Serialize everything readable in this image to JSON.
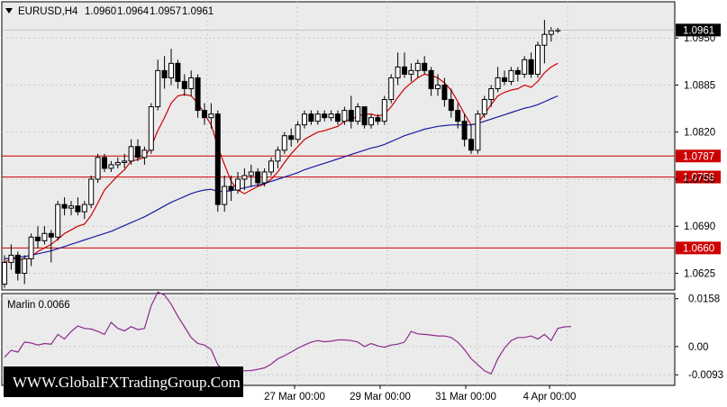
{
  "symbol": "EURUSD,H4",
  "ohlc": [
    "1.0960",
    "1.0964",
    "1.0957",
    "1.0961"
  ],
  "colors": {
    "price_bg": "#ebebeb",
    "grid": "#c8c8c8",
    "candle": "#000000",
    "ma_fast": "#cc0000",
    "ma_slow": "#1a1aa0",
    "hline": "#cc0000",
    "oscillator": "#8c2a8c",
    "price_tag": "#000000"
  },
  "current_price": "1.0961",
  "watermark": "WWW.GlobalFXTradingGroup.Com",
  "chart_data": [
    {
      "type": "candlestick",
      "title": "EURUSD,H4",
      "y_ticks": [
        "1.0950",
        "1.0885",
        "1.0820",
        "1.0755",
        "1.0690",
        "1.0625"
      ],
      "ylim": [
        1.0602,
        1.1
      ],
      "x_ticks": [
        "27 Mar 00:00",
        "29 Mar 00:00",
        "31 Mar 00:00",
        "4 Apr 00:00"
      ],
      "horizontal_levels": [
        {
          "value": 1.0787,
          "label": "1.0787"
        },
        {
          "value": 1.0758,
          "label": "1.0758"
        },
        {
          "value": 1.066,
          "label": "1.0660"
        }
      ],
      "candles": [
        [
          1.061,
          1.065,
          1.0605,
          1.064
        ],
        [
          1.064,
          1.0665,
          1.063,
          1.065
        ],
        [
          1.065,
          1.0655,
          1.0615,
          1.0625
        ],
        [
          1.0625,
          1.065,
          1.061,
          1.0645
        ],
        [
          1.0645,
          1.068,
          1.0635,
          1.0675
        ],
        [
          1.0675,
          1.069,
          1.066,
          1.067
        ],
        [
          1.067,
          1.069,
          1.0665,
          1.068
        ],
        [
          1.068,
          1.0685,
          1.064,
          1.0675
        ],
        [
          1.0675,
          1.0725,
          1.067,
          1.072
        ],
        [
          1.072,
          1.073,
          1.0705,
          1.0715
        ],
        [
          1.0715,
          1.0725,
          1.0705,
          1.0718
        ],
        [
          1.0718,
          1.073,
          1.0705,
          1.071
        ],
        [
          1.071,
          1.0725,
          1.07,
          1.072
        ],
        [
          1.072,
          1.076,
          1.0715,
          1.0755
        ],
        [
          1.0755,
          1.079,
          1.075,
          1.0785
        ],
        [
          1.0785,
          1.079,
          1.0765,
          1.077
        ],
        [
          1.077,
          1.078,
          1.0765,
          1.0775
        ],
        [
          1.0775,
          1.0785,
          1.077,
          1.0778
        ],
        [
          1.0778,
          1.079,
          1.077,
          1.078
        ],
        [
          1.078,
          1.081,
          1.0775,
          1.08
        ],
        [
          1.08,
          1.081,
          1.078,
          1.0785
        ],
        [
          1.0785,
          1.08,
          1.0775,
          1.0795
        ],
        [
          1.0795,
          1.086,
          1.079,
          1.0855
        ],
        [
          1.0855,
          1.092,
          1.085,
          1.0905
        ],
        [
          1.0905,
          1.0925,
          1.088,
          1.0895
        ],
        [
          1.0895,
          1.0935,
          1.0885,
          1.0915
        ],
        [
          1.0915,
          1.092,
          1.088,
          1.089
        ],
        [
          1.089,
          1.09,
          1.087,
          1.088
        ],
        [
          1.088,
          1.0905,
          1.087,
          1.0895
        ],
        [
          1.0895,
          1.09,
          1.084,
          1.085
        ],
        [
          1.085,
          1.086,
          1.083,
          1.084
        ],
        [
          1.084,
          1.086,
          1.0825,
          1.0845
        ],
        [
          1.0845,
          1.085,
          1.071,
          1.072
        ],
        [
          1.072,
          1.076,
          1.071,
          1.0745
        ],
        [
          1.0745,
          1.076,
          1.0725,
          1.074
        ],
        [
          1.074,
          1.0765,
          1.0735,
          1.0755
        ],
        [
          1.0755,
          1.077,
          1.074,
          1.076
        ],
        [
          1.076,
          1.0775,
          1.0745,
          1.0765
        ],
        [
          1.0765,
          1.077,
          1.0745,
          1.075
        ],
        [
          1.075,
          1.077,
          1.0745,
          1.0765
        ],
        [
          1.0765,
          1.0785,
          1.076,
          1.078
        ],
        [
          1.078,
          1.08,
          1.077,
          1.0795
        ],
        [
          1.0795,
          1.082,
          1.079,
          1.0815
        ],
        [
          1.0815,
          1.0825,
          1.08,
          1.081
        ],
        [
          1.081,
          1.0835,
          1.0805,
          1.083
        ],
        [
          1.083,
          1.085,
          1.0825,
          1.0845
        ],
        [
          1.0845,
          1.085,
          1.083,
          1.0835
        ],
        [
          1.0835,
          1.085,
          1.083,
          1.0845
        ],
        [
          1.0845,
          1.085,
          1.0835,
          1.084
        ],
        [
          1.084,
          1.085,
          1.0835,
          1.0845
        ],
        [
          1.0845,
          1.085,
          1.083,
          1.0835
        ],
        [
          1.0835,
          1.0855,
          1.083,
          1.085
        ],
        [
          1.085,
          1.087,
          1.0825,
          1.0835
        ],
        [
          1.0835,
          1.086,
          1.083,
          1.0855
        ],
        [
          1.0855,
          1.0855,
          1.0825,
          1.083
        ],
        [
          1.083,
          1.0845,
          1.0825,
          1.084
        ],
        [
          1.084,
          1.0845,
          1.083,
          1.0835
        ],
        [
          1.0835,
          1.087,
          1.083,
          1.0865
        ],
        [
          1.0865,
          1.09,
          1.086,
          1.0895
        ],
        [
          1.0895,
          1.093,
          1.0885,
          1.091
        ],
        [
          1.091,
          1.093,
          1.0895,
          1.09
        ],
        [
          1.09,
          1.0915,
          1.089,
          1.0905
        ],
        [
          1.0905,
          1.092,
          1.0895,
          1.0915
        ],
        [
          1.0915,
          1.0925,
          1.09,
          1.0905
        ],
        [
          1.0905,
          1.091,
          1.087,
          1.088
        ],
        [
          1.088,
          1.09,
          1.087,
          1.0885
        ],
        [
          1.0885,
          1.0895,
          1.0855,
          1.0865
        ],
        [
          1.0865,
          1.088,
          1.084,
          1.085
        ],
        [
          1.085,
          1.086,
          1.0825,
          1.0835
        ],
        [
          1.0835,
          1.0845,
          1.08,
          1.081
        ],
        [
          1.081,
          1.083,
          1.079,
          1.0795
        ],
        [
          1.0795,
          1.085,
          1.079,
          1.0845
        ],
        [
          1.0845,
          1.087,
          1.084,
          1.0865
        ],
        [
          1.0865,
          1.0885,
          1.0855,
          1.088
        ],
        [
          1.088,
          1.091,
          1.0875,
          1.0895
        ],
        [
          1.0895,
          1.0905,
          1.0885,
          1.089
        ],
        [
          1.089,
          1.091,
          1.0885,
          1.0905
        ],
        [
          1.0905,
          1.091,
          1.089,
          1.09
        ],
        [
          1.09,
          1.0925,
          1.0895,
          1.092
        ],
        [
          1.092,
          1.093,
          1.0895,
          1.09
        ],
        [
          1.09,
          1.0945,
          1.0895,
          1.094
        ],
        [
          1.094,
          1.0975,
          1.0915,
          1.0955
        ],
        [
          1.0955,
          1.0965,
          1.0945,
          1.096
        ],
        [
          1.096,
          1.0964,
          1.0957,
          1.0961
        ]
      ],
      "series": [
        {
          "type": "line",
          "values": [
            1.064,
            1.0645,
            1.0645,
            1.0643,
            1.0648,
            1.0655,
            1.066,
            1.0665,
            1.0672,
            1.068,
            1.0685,
            1.069,
            1.0693,
            1.0705,
            1.0722,
            1.074,
            1.075,
            1.076,
            1.0768,
            1.078,
            1.0782,
            1.0785,
            1.08,
            1.0822,
            1.084,
            1.086,
            1.087,
            1.0872,
            1.087,
            1.086,
            1.0845,
            1.083,
            1.08,
            1.0775,
            1.0752,
            1.074,
            1.0735,
            1.074,
            1.0745,
            1.0748,
            1.0755,
            1.0765,
            1.0778,
            1.079,
            1.08,
            1.081,
            1.0815,
            1.082,
            1.0822,
            1.0825,
            1.0828,
            1.0835,
            1.0838,
            1.0842,
            1.0845,
            1.0845,
            1.0842,
            1.0845,
            1.0855,
            1.0868,
            1.088,
            1.0888,
            1.0895,
            1.09,
            1.0898,
            1.0895,
            1.0888,
            1.0878,
            1.0862,
            1.0845,
            1.083,
            1.0832,
            1.0845,
            1.0858,
            1.087,
            1.0875,
            1.0878,
            1.088,
            1.0885,
            1.0882,
            1.089,
            1.0902,
            1.091,
            1.0915
          ]
        },
        {
          "type": "line",
          "values": [
            1.0645,
            1.0646,
            1.0647,
            1.0648,
            1.065,
            1.0652,
            1.0654,
            1.0656,
            1.0659,
            1.0662,
            1.0665,
            1.0668,
            1.0671,
            1.0674,
            1.0677,
            1.068,
            1.0683,
            1.0687,
            1.0691,
            1.0695,
            1.0699,
            1.0703,
            1.0708,
            1.0713,
            1.0718,
            1.0723,
            1.0727,
            1.0731,
            1.0735,
            1.0738,
            1.074,
            1.0741,
            1.0738,
            1.0738,
            1.0739,
            1.0741,
            1.0743,
            1.0745,
            1.0747,
            1.0749,
            1.0752,
            1.0755,
            1.0758,
            1.0761,
            1.0764,
            1.0768,
            1.0771,
            1.0774,
            1.0777,
            1.078,
            1.0783,
            1.0786,
            1.0789,
            1.0792,
            1.0795,
            1.0798,
            1.08,
            1.0803,
            1.0807,
            1.0811,
            1.0815,
            1.0818,
            1.0821,
            1.0824,
            1.0826,
            1.0828,
            1.0829,
            1.083,
            1.083,
            1.083,
            1.083,
            1.0832,
            1.0835,
            1.0838,
            1.0841,
            1.0844,
            1.0847,
            1.085,
            1.0853,
            1.0855,
            1.0858,
            1.0862,
            1.0866,
            1.087
          ]
        }
      ]
    },
    {
      "type": "line",
      "title": "Marlin 0.0066",
      "y_ticks": [
        "0.0158",
        "0.00",
        "-0.0093"
      ],
      "ylim": [
        -0.0128,
        0.0175
      ],
      "series": [
        {
          "name": "Marlin",
          "values": [
            -0.0035,
            -0.0012,
            -0.0018,
            0.0015,
            0.0012,
            0.0005,
            0.001,
            0.0008,
            0.004,
            0.0025,
            0.005,
            0.0068,
            0.006,
            0.0058,
            0.005,
            0.004,
            0.008,
            0.006,
            0.0052,
            0.0066,
            0.0056,
            0.006,
            0.0135,
            0.018,
            0.017,
            0.014,
            0.01,
            0.0065,
            0.003,
            0.001,
            0.0005,
            -0.001,
            -0.006,
            -0.008,
            -0.008,
            -0.008,
            -0.008,
            -0.0079,
            -0.0075,
            -0.007,
            -0.0058,
            -0.004,
            -0.003,
            -0.0018,
            -0.0005,
            0.0005,
            0.0015,
            0.002,
            0.0016,
            0.0018,
            0.0022,
            0.0022,
            0.002,
            0.0015,
            0.0,
            0.001,
            0.0002,
            -0.0002,
            0.0005,
            0.0008,
            0.0015,
            0.005,
            0.0042,
            0.004,
            0.0038,
            0.0035,
            0.0035,
            0.003,
            0.0015,
            -0.001,
            -0.004,
            -0.006,
            -0.008,
            -0.009,
            -0.004,
            -0.0005,
            0.002,
            0.003,
            0.003,
            0.0035,
            0.0025,
            0.004,
            0.002,
            0.006,
            0.0065,
            0.0066
          ]
        }
      ]
    }
  ]
}
